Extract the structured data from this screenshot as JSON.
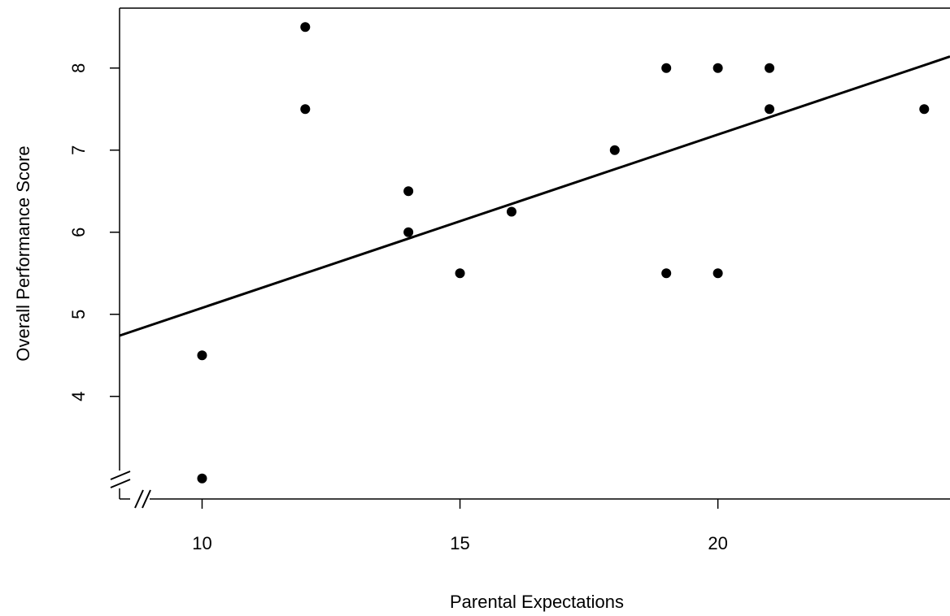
{
  "chart_data": {
    "type": "scatter",
    "title": "",
    "xlabel": "Parental Expectations",
    "ylabel": "Overall Performance Score",
    "xlim": [
      8.4,
      24.5
    ],
    "ylim": [
      2.75,
      8.73
    ],
    "x_ticks": [
      10,
      15,
      20
    ],
    "y_ticks": [
      4,
      5,
      6,
      7,
      8
    ],
    "axis_breaks": [
      "x",
      "y"
    ],
    "points": [
      {
        "x": 10,
        "y": 3.0
      },
      {
        "x": 10,
        "y": 4.5
      },
      {
        "x": 12,
        "y": 8.5
      },
      {
        "x": 12,
        "y": 7.5
      },
      {
        "x": 14,
        "y": 6.5
      },
      {
        "x": 14,
        "y": 6.0
      },
      {
        "x": 15,
        "y": 5.5
      },
      {
        "x": 16,
        "y": 6.25
      },
      {
        "x": 18,
        "y": 7.0
      },
      {
        "x": 19,
        "y": 8.0
      },
      {
        "x": 19,
        "y": 5.5
      },
      {
        "x": 20,
        "y": 8.0
      },
      {
        "x": 20,
        "y": 5.5
      },
      {
        "x": 21,
        "y": 8.0
      },
      {
        "x": 21,
        "y": 7.5
      },
      {
        "x": 24,
        "y": 7.5
      }
    ],
    "regression_line": {
      "x1": 8.4,
      "y1": 4.74,
      "x2": 24.5,
      "y2": 8.14
    },
    "colors": {
      "points": "#000000",
      "line": "#000000",
      "axes": "#000000"
    }
  }
}
